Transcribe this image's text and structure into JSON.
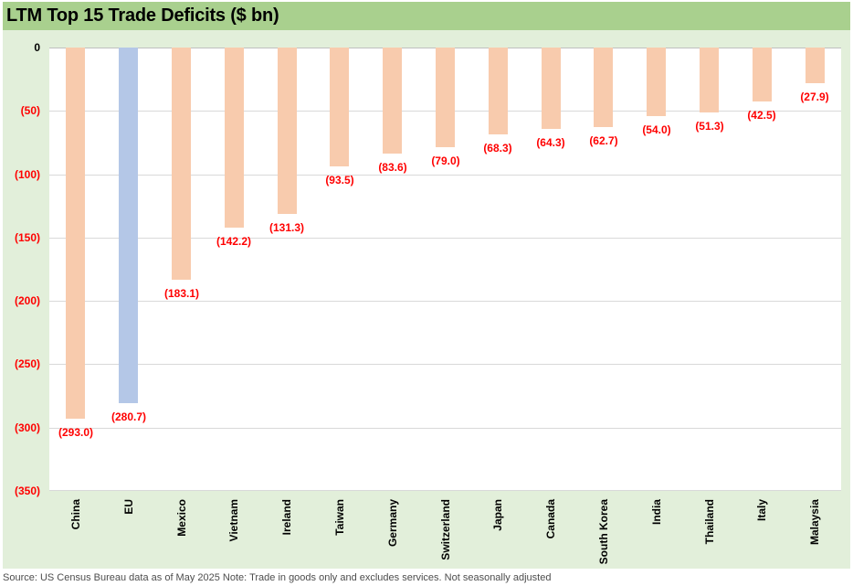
{
  "header": {
    "title": "LTM Top 15 Trade Deficits ($ bn)"
  },
  "footer": {
    "text": "Source: US Census Bureau data as of May 2025 Note: Trade in goods only and excludes services. Not seasonally adjusted"
  },
  "colors": {
    "title_bar_bg": "#A9D08E",
    "canvas_bg": "#E2EFDA",
    "plot_bg": "#FFFFFF",
    "gridline": "#D9D9D9",
    "zero_line": "#BFBFBF",
    "bar_default": "#F8CBAD",
    "bar_highlight": "#B4C7E7",
    "value_label": "#FF0000",
    "tick_label": "#FF0000",
    "tick_label_zero": "#000000",
    "category_label": "#000000",
    "footer_bg": "#FFFFFF",
    "footer_text": "#4D4D4D"
  },
  "chart_data": {
    "type": "bar",
    "title": "LTM Top 15 Trade Deficits ($ bn)",
    "orientation": "vertical",
    "unit": "$ bn",
    "categories": [
      "China",
      "EU",
      "Mexico",
      "Vietnam",
      "Ireland",
      "Taiwan",
      "Germany",
      "Switzerland",
      "Japan",
      "Canada",
      "South Korea",
      "India",
      "Thailand",
      "Italy",
      "Malaysia"
    ],
    "values": [
      -293.0,
      -280.7,
      -183.1,
      -142.2,
      -131.3,
      -93.5,
      -83.6,
      -79.0,
      -68.3,
      -64.3,
      -62.7,
      -54.0,
      -51.3,
      -42.5,
      -27.9
    ],
    "value_labels": [
      "(293.0)",
      "(280.7)",
      "(183.1)",
      "(142.2)",
      "(131.3)",
      "(93.5)",
      "(83.6)",
      "(79.0)",
      "(68.3)",
      "(64.3)",
      "(62.7)",
      "(54.0)",
      "(51.3)",
      "(42.5)",
      "(27.9)"
    ],
    "highlight_category": "EU",
    "ylim": [
      -350,
      0
    ],
    "y_ticks": [
      {
        "value": 0,
        "label": "0"
      },
      {
        "value": -50,
        "label": "(50)"
      },
      {
        "value": -100,
        "label": "(100)"
      },
      {
        "value": -150,
        "label": "(150)"
      },
      {
        "value": -200,
        "label": "(200)"
      },
      {
        "value": -250,
        "label": "(250)"
      },
      {
        "value": -300,
        "label": "(300)"
      },
      {
        "value": -350,
        "label": "(350)"
      }
    ],
    "grid": true,
    "legend": false,
    "data_labels_position": "outside-end"
  }
}
